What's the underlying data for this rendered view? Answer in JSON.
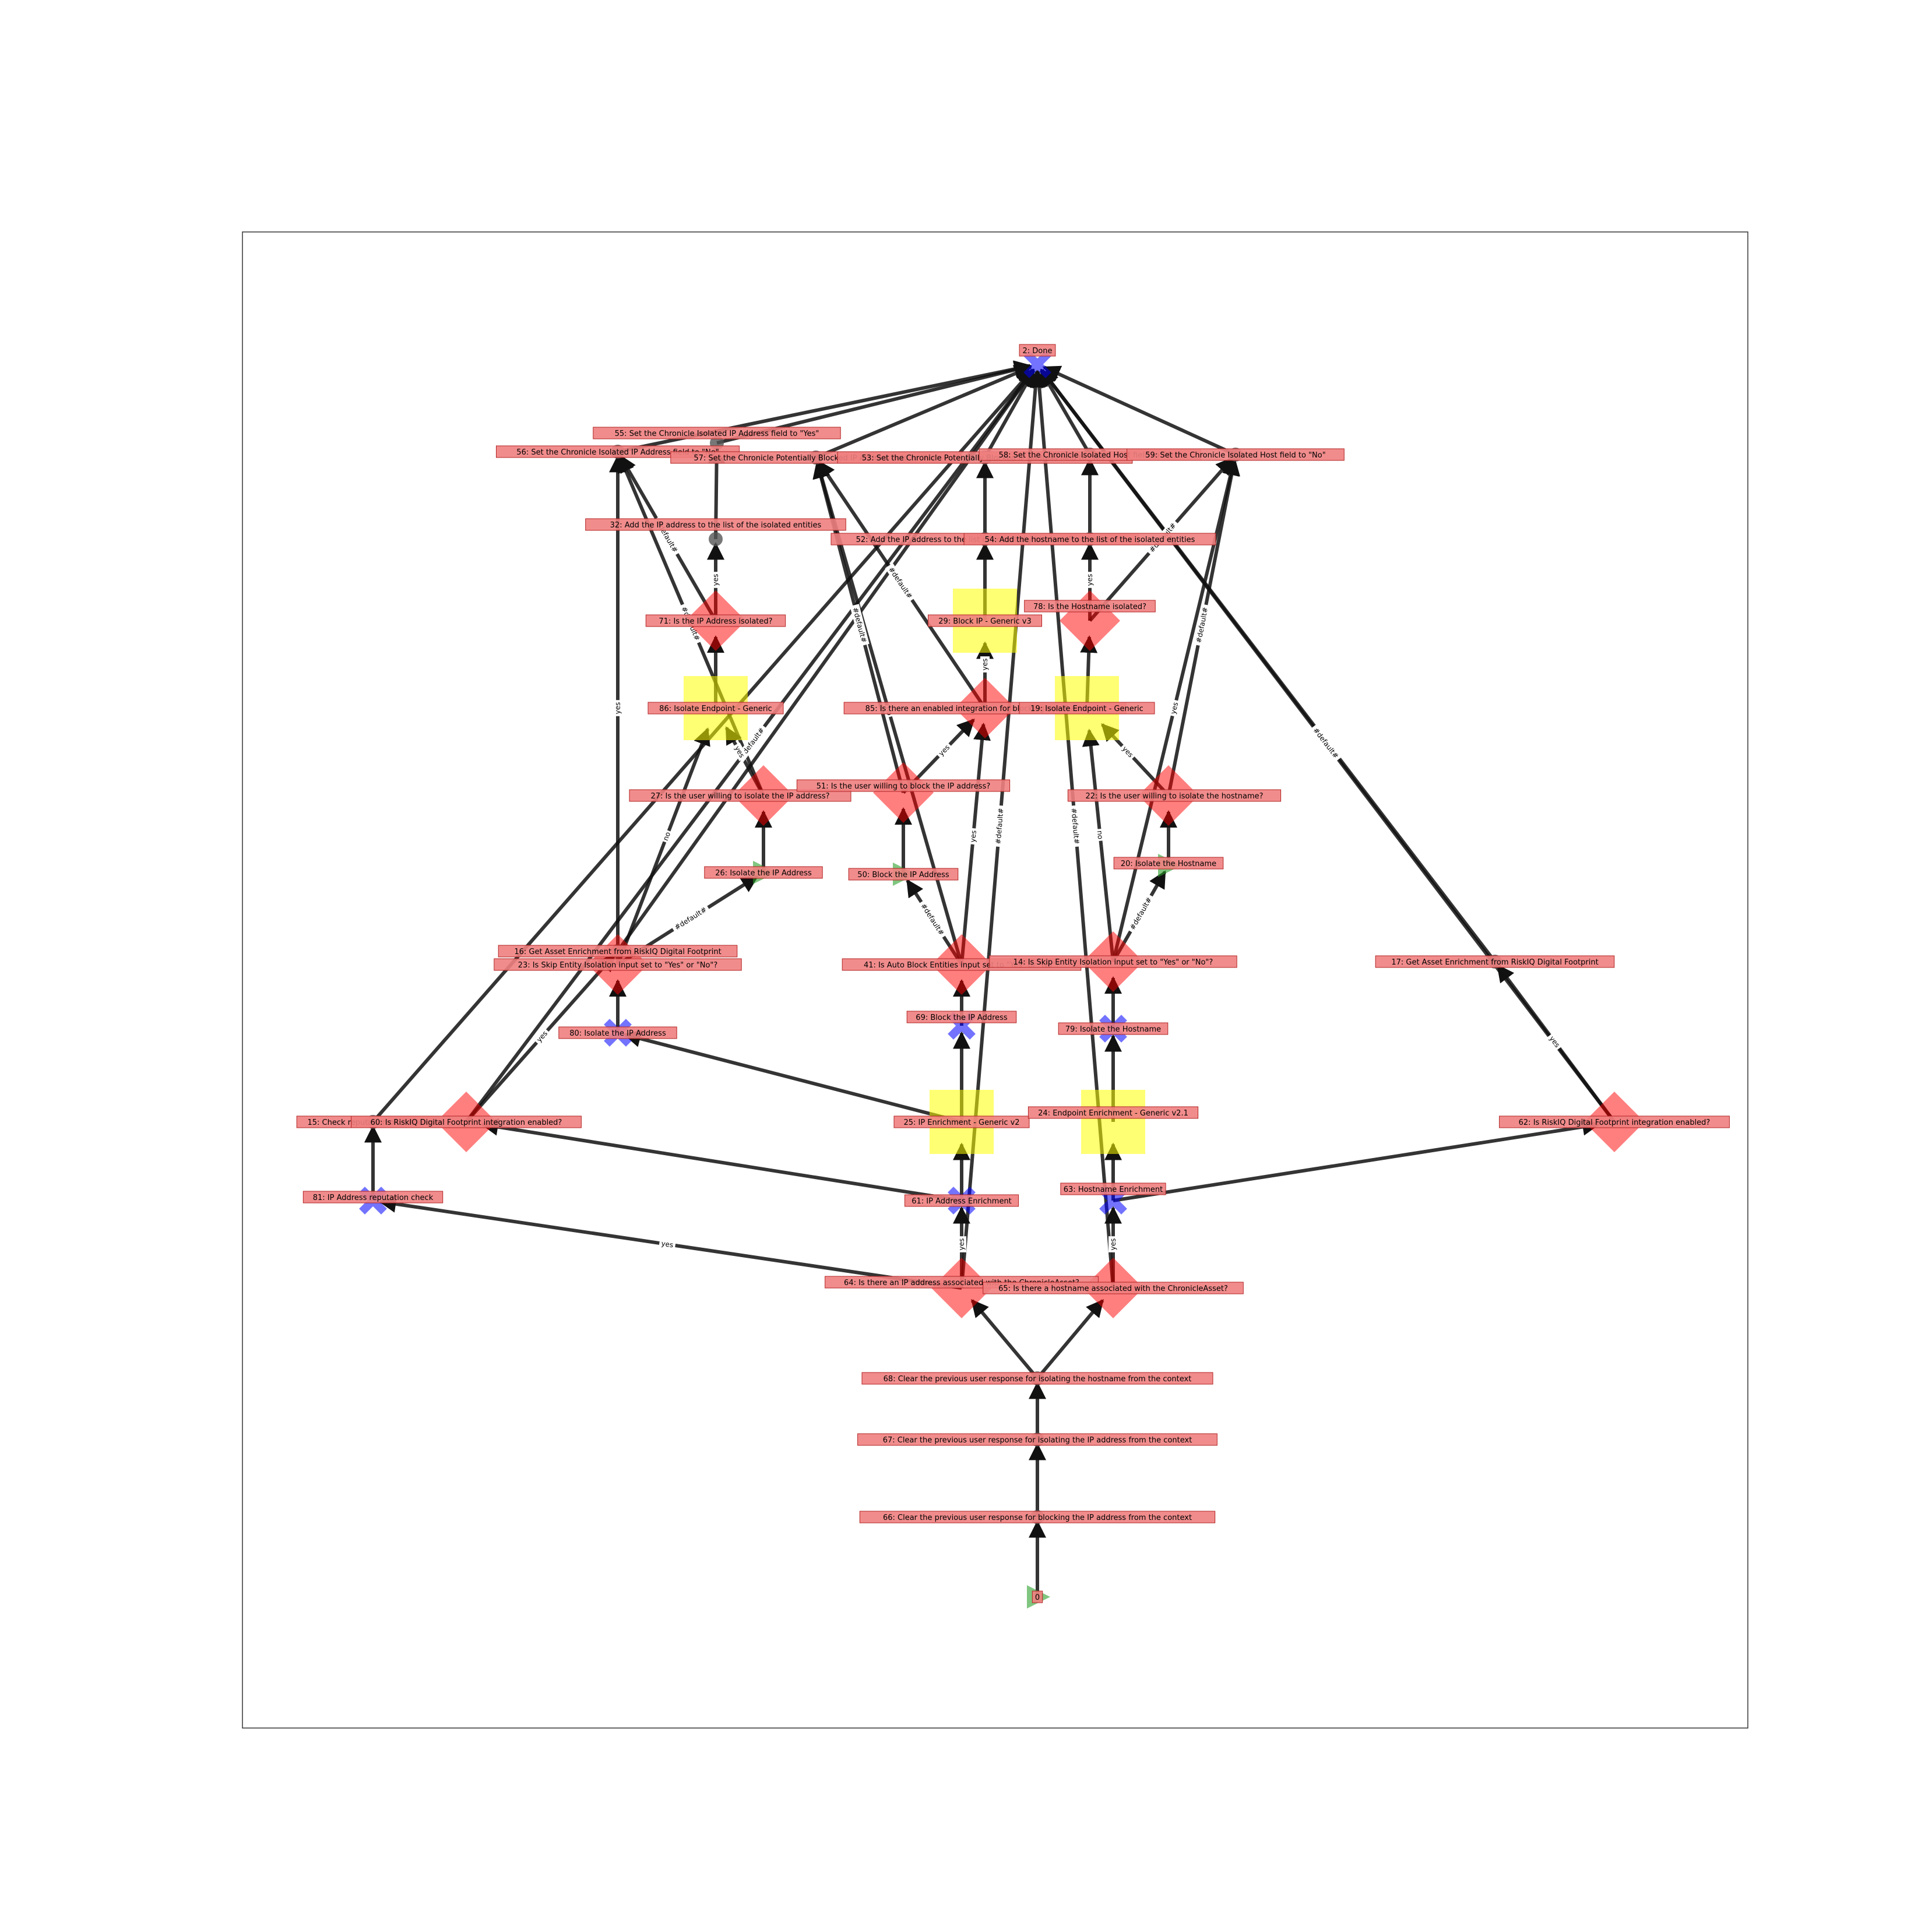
{
  "nodes": [
    {
      "id": "n2",
      "label": "2: Done",
      "shape": "x"
    },
    {
      "id": "n55",
      "label": "55: Set the Chronicle Isolated IP Address field to \"Yes\"",
      "shape": "dot"
    },
    {
      "id": "n56",
      "label": "56: Set the Chronicle Isolated IP Address field to \"No\"",
      "shape": "dot"
    },
    {
      "id": "n57",
      "label": "57: Set the Chronicle Potentially Blocked IP Address field to \"No\"",
      "shape": "dot"
    },
    {
      "id": "n53",
      "label": "53: Set the Chronicle Potentially Blocked IP Address field to \"Yes\"",
      "shape": "dot"
    },
    {
      "id": "n58",
      "label": "58: Set the Chronicle Isolated Host field to \"Yes\"",
      "shape": "dot"
    },
    {
      "id": "n59",
      "label": "59: Set the Chronicle Isolated Host field to \"No\"",
      "shape": "dot"
    },
    {
      "id": "n32",
      "label": "32: Add the IP address to the list of the isolated entities",
      "shape": "dot"
    },
    {
      "id": "n52",
      "label": "52: Add the IP address to the list of potentially blocked IP addresses",
      "shape": "dot"
    },
    {
      "id": "n54",
      "label": "54: Add the hostname to the list of the isolated entities",
      "shape": "dot"
    },
    {
      "id": "n71",
      "label": "71: Is the IP Address isolated?",
      "shape": "diamond"
    },
    {
      "id": "n29",
      "label": "29: Block IP - Generic v3",
      "shape": "square"
    },
    {
      "id": "n78",
      "label": "78: Is the Hostname isolated?",
      "shape": "diamond"
    },
    {
      "id": "n86",
      "label": "86: Isolate Endpoint - Generic",
      "shape": "square"
    },
    {
      "id": "n85",
      "label": "85: Is there an enabled integration for blocking the IP address?",
      "shape": "diamond"
    },
    {
      "id": "n19",
      "label": "19: Isolate Endpoint - Generic",
      "shape": "square"
    },
    {
      "id": "n27",
      "label": "27: Is the user willing to isolate the IP address?",
      "shape": "diamond"
    },
    {
      "id": "n51",
      "label": "51: Is the user willing to block the IP address?",
      "shape": "diamond"
    },
    {
      "id": "n22",
      "label": "22: Is the user willing to isolate the hostname?",
      "shape": "diamond"
    },
    {
      "id": "n26",
      "label": "26: Isolate the IP Address",
      "shape": "tri"
    },
    {
      "id": "n50",
      "label": "50: Block the IP Address",
      "shape": "tri"
    },
    {
      "id": "n20",
      "label": "20: Isolate the Hostname",
      "shape": "tri"
    },
    {
      "id": "n16",
      "label": "16: Get Asset Enrichment from RiskIQ Digital Footprint",
      "shape": "dot"
    },
    {
      "id": "n23",
      "label": "23: Is Skip Entity Isolation input set to \"Yes\" or \"No\"?",
      "shape": "diamond"
    },
    {
      "id": "n41",
      "label": "41: Is Auto Block Entities input set to \"Yes\" or \"No\"?",
      "shape": "diamond"
    },
    {
      "id": "n14",
      "label": "14: Is Skip Entity Isolation input set to \"Yes\" or \"No\"?",
      "shape": "diamond"
    },
    {
      "id": "n17",
      "label": "17: Get Asset Enrichment from RiskIQ Digital Footprint",
      "shape": "dot"
    },
    {
      "id": "n80",
      "label": "80: Isolate the IP Address",
      "shape": "x"
    },
    {
      "id": "n69",
      "label": "69: Block the IP Address",
      "shape": "x"
    },
    {
      "id": "n79",
      "label": "79: Isolate the Hostname",
      "shape": "x"
    },
    {
      "id": "n15",
      "label": "15: Check reputation of IP Address",
      "shape": "dot"
    },
    {
      "id": "n60",
      "label": "60: Is RiskIQ Digital Footprint integration enabled?",
      "shape": "diamond"
    },
    {
      "id": "n25",
      "label": "25: IP Enrichment - Generic v2",
      "shape": "square"
    },
    {
      "id": "n24",
      "label": "24: Endpoint Enrichment - Generic v2.1",
      "shape": "square"
    },
    {
      "id": "n62",
      "label": "62: Is RiskIQ Digital Footprint integration enabled?",
      "shape": "diamond"
    },
    {
      "id": "n81",
      "label": "81: IP Address reputation check",
      "shape": "x"
    },
    {
      "id": "n61",
      "label": "61: IP Address Enrichment",
      "shape": "x"
    },
    {
      "id": "n63",
      "label": "63: Hostname Enrichment",
      "shape": "x"
    },
    {
      "id": "n64",
      "label": "64: Is there an IP address associated with the ChronicleAsset?",
      "shape": "diamond"
    },
    {
      "id": "n65",
      "label": "65: Is there a hostname associated with the ChronicleAsset?",
      "shape": "diamond"
    },
    {
      "id": "n68",
      "label": "68: Clear the previous user response for isolating the hostname from the context",
      "shape": "dot"
    },
    {
      "id": "n67",
      "label": "67: Clear the previous user response for isolating the IP address from the context",
      "shape": "dot"
    },
    {
      "id": "n66",
      "label": "66: Clear the previous user response for blocking the IP address from the context",
      "shape": "dot"
    },
    {
      "id": "n0",
      "label": "0",
      "shape": "tri"
    }
  ],
  "edges": [
    {
      "from": "n0",
      "to": "n66",
      "label": ""
    },
    {
      "from": "n66",
      "to": "n67",
      "label": ""
    },
    {
      "from": "n67",
      "to": "n68",
      "label": ""
    },
    {
      "from": "n68",
      "to": "n64",
      "label": ""
    },
    {
      "from": "n68",
      "to": "n65",
      "label": ""
    },
    {
      "from": "n64",
      "to": "n81",
      "label": "yes"
    },
    {
      "from": "n64",
      "to": "n61",
      "label": "yes"
    },
    {
      "from": "n64",
      "to": "n2",
      "label": "#default#"
    },
    {
      "from": "n65",
      "to": "n63",
      "label": "yes"
    },
    {
      "from": "n65",
      "to": "n2",
      "label": "#default#"
    },
    {
      "from": "n81",
      "to": "n15",
      "label": ""
    },
    {
      "from": "n15",
      "to": "n2",
      "label": ""
    },
    {
      "from": "n61",
      "to": "n60",
      "label": ""
    },
    {
      "from": "n61",
      "to": "n25",
      "label": ""
    },
    {
      "from": "n60",
      "to": "n16",
      "label": "yes"
    },
    {
      "from": "n60",
      "to": "n2",
      "label": "#default#"
    },
    {
      "from": "n16",
      "to": "n2",
      "label": ""
    },
    {
      "from": "n25",
      "to": "n80",
      "label": ""
    },
    {
      "from": "n25",
      "to": "n69",
      "label": ""
    },
    {
      "from": "n63",
      "to": "n62",
      "label": ""
    },
    {
      "from": "n63",
      "to": "n24",
      "label": ""
    },
    {
      "from": "n62",
      "to": "n17",
      "label": "yes"
    },
    {
      "from": "n62",
      "to": "n2",
      "label": "#default#"
    },
    {
      "from": "n24",
      "to": "n79",
      "label": ""
    },
    {
      "from": "n80",
      "to": "n23",
      "label": ""
    },
    {
      "from": "n69",
      "to": "n41",
      "label": ""
    },
    {
      "from": "n79",
      "to": "n14",
      "label": ""
    },
    {
      "from": "n23",
      "to": "n26",
      "label": "#default#"
    },
    {
      "from": "n23",
      "to": "n86",
      "label": "no"
    },
    {
      "from": "n23",
      "to": "n56",
      "label": "yes"
    },
    {
      "from": "n41",
      "to": "n50",
      "label": "#default#"
    },
    {
      "from": "n41",
      "to": "n85",
      "label": "yes"
    },
    {
      "from": "n41",
      "to": "n57",
      "label": "no"
    },
    {
      "from": "n14",
      "to": "n20",
      "label": "#default#"
    },
    {
      "from": "n14",
      "to": "n19",
      "label": "no"
    },
    {
      "from": "n14",
      "to": "n59",
      "label": "yes"
    },
    {
      "from": "n26",
      "to": "n27",
      "label": ""
    },
    {
      "from": "n50",
      "to": "n51",
      "label": ""
    },
    {
      "from": "n20",
      "to": "n22",
      "label": ""
    },
    {
      "from": "n27",
      "to": "n86",
      "label": "yes"
    },
    {
      "from": "n27",
      "to": "n56",
      "label": "#default#"
    },
    {
      "from": "n51",
      "to": "n85",
      "label": "yes"
    },
    {
      "from": "n51",
      "to": "n57",
      "label": "#default#"
    },
    {
      "from": "n22",
      "to": "n19",
      "label": "yes"
    },
    {
      "from": "n22",
      "to": "n59",
      "label": "#default#"
    },
    {
      "from": "n86",
      "to": "n71",
      "label": ""
    },
    {
      "from": "n71",
      "to": "n32",
      "label": "yes"
    },
    {
      "from": "n71",
      "to": "n56",
      "label": "#default#"
    },
    {
      "from": "n32",
      "to": "n55",
      "label": ""
    },
    {
      "from": "n85",
      "to": "n29",
      "label": "yes"
    },
    {
      "from": "n85",
      "to": "n57",
      "label": "#default#"
    },
    {
      "from": "n29",
      "to": "n52",
      "label": ""
    },
    {
      "from": "n52",
      "to": "n53",
      "label": ""
    },
    {
      "from": "n19",
      "to": "n78",
      "label": ""
    },
    {
      "from": "n78",
      "to": "n54",
      "label": "yes"
    },
    {
      "from": "n78",
      "to": "n59",
      "label": "#default#"
    },
    {
      "from": "n54",
      "to": "n58",
      "label": ""
    },
    {
      "from": "n55",
      "to": "n2",
      "label": ""
    },
    {
      "from": "n56",
      "to": "n2",
      "label": ""
    },
    {
      "from": "n57",
      "to": "n2",
      "label": ""
    },
    {
      "from": "n53",
      "to": "n2",
      "label": ""
    },
    {
      "from": "n58",
      "to": "n2",
      "label": ""
    },
    {
      "from": "n59",
      "to": "n2",
      "label": ""
    },
    {
      "from": "n17",
      "to": "n2",
      "label": ""
    }
  ],
  "colors": {
    "label_box": "#f08080",
    "label_border": "#b22222",
    "diamond": "#ff0000",
    "square": "#ffff00",
    "triangle": "#2ca02c",
    "x_marker": "#0000ff",
    "dot": "#555555",
    "edge": "#111111"
  }
}
